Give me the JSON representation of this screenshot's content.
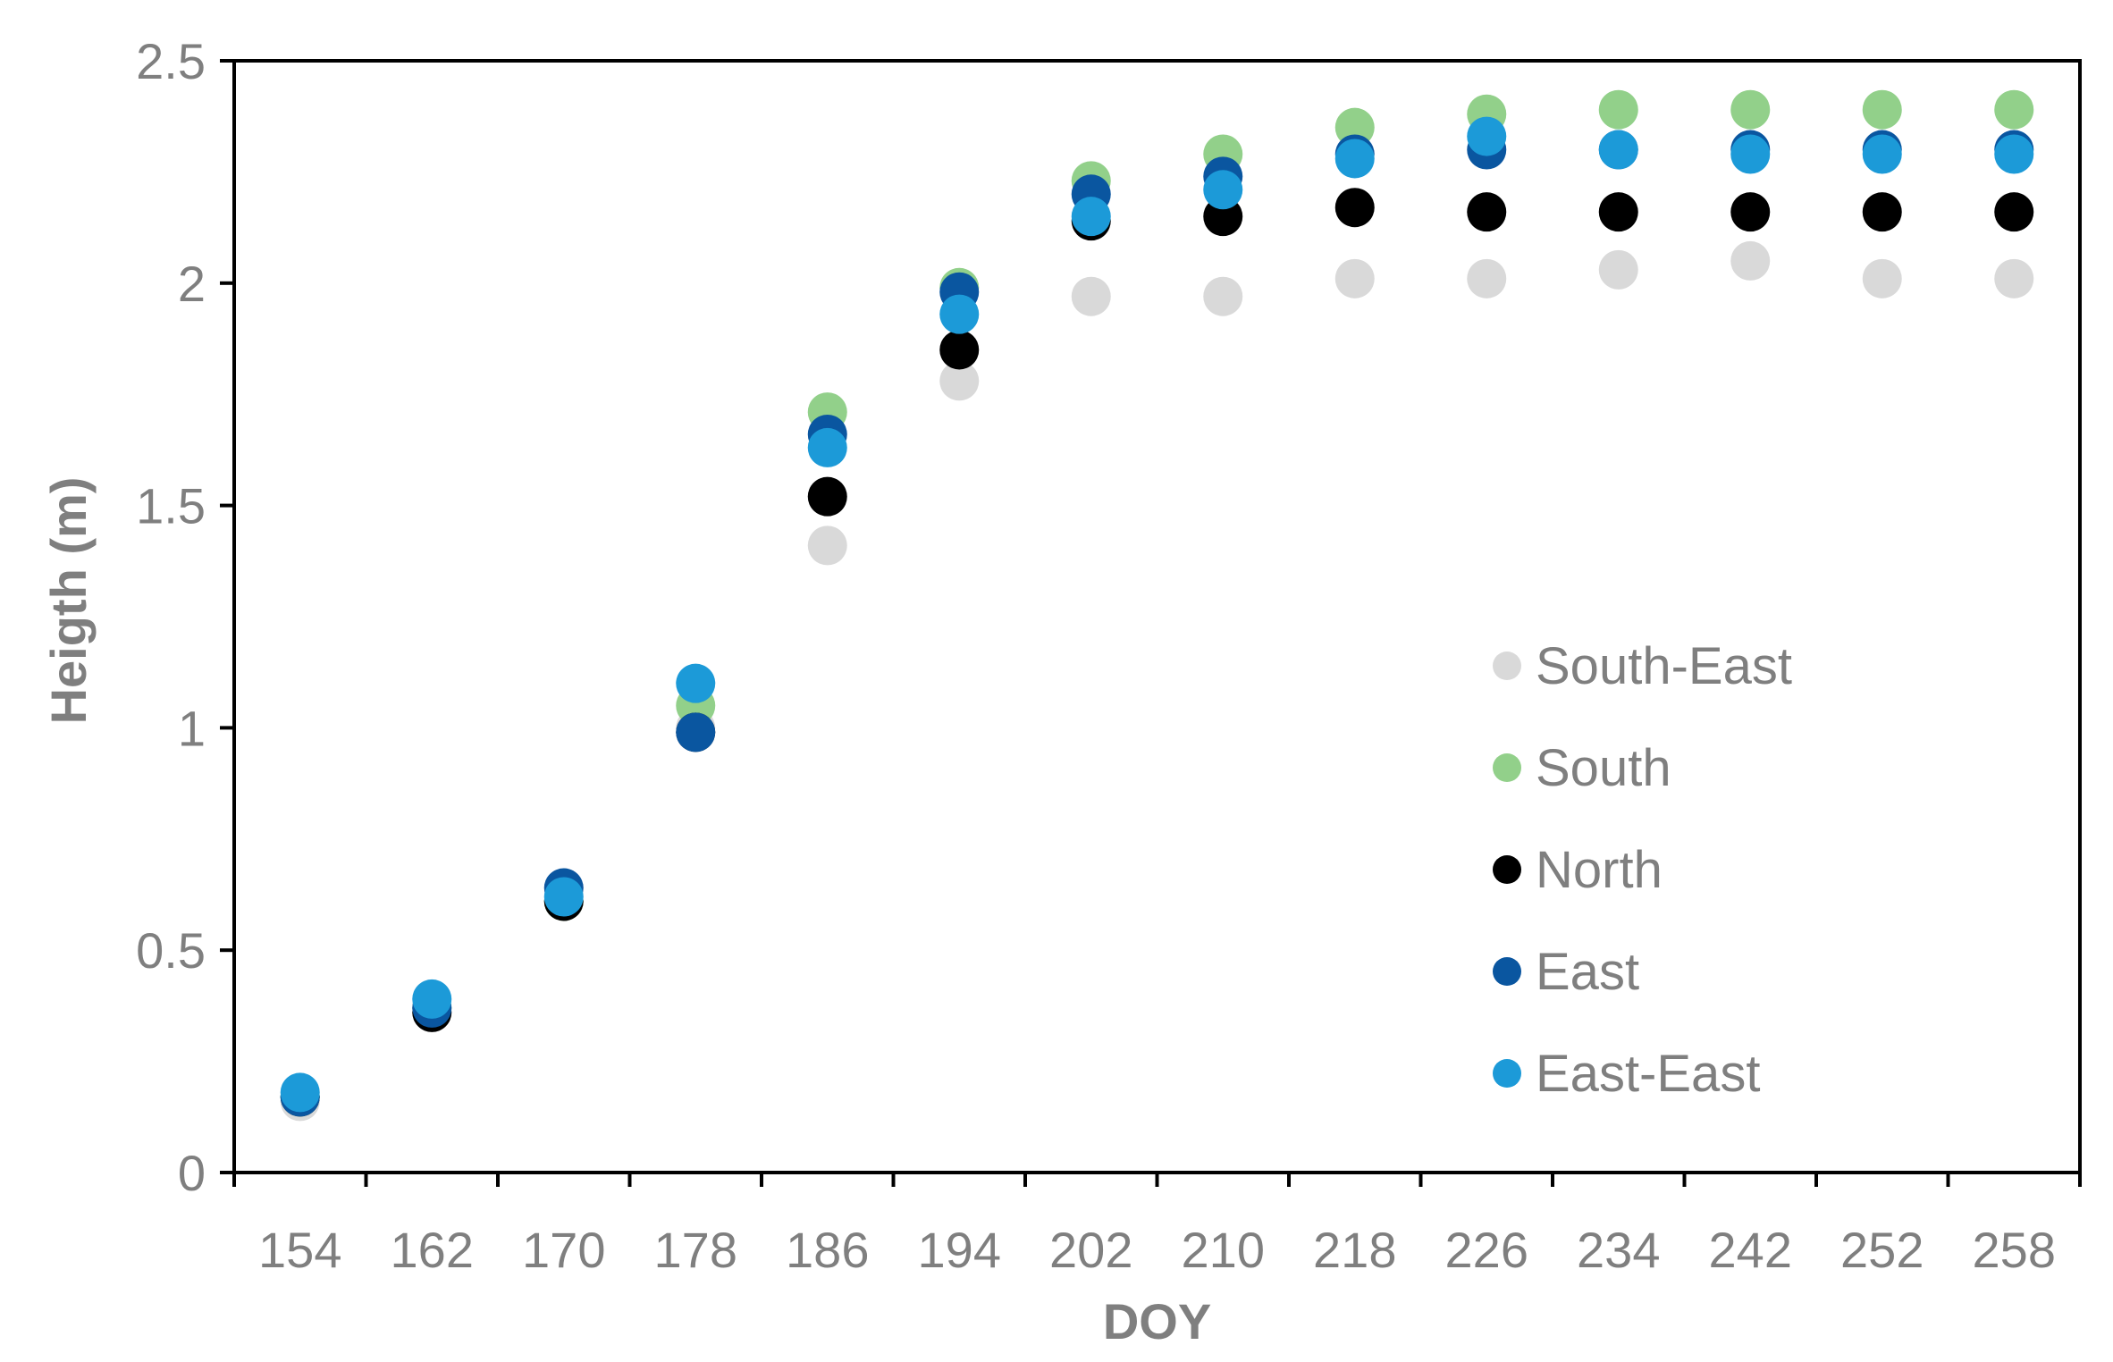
{
  "chart_data": {
    "type": "scatter",
    "title": "",
    "xlabel": "DOY",
    "ylabel": "Heigth (m)",
    "categories": [
      "154",
      "162",
      "170",
      "178",
      "186",
      "194",
      "202",
      "210",
      "218",
      "226",
      "234",
      "242",
      "252",
      "258"
    ],
    "yticks": [
      "0",
      "0.5",
      "1",
      "1.5",
      "2",
      "2.5"
    ],
    "ylim": [
      0,
      2.5
    ],
    "grid": false,
    "legend_position": "right",
    "series": [
      {
        "name": "South-East",
        "color": "#d9d9d9",
        "values": [
          0.16,
          0.37,
          0.61,
          1.0,
          1.41,
          1.78,
          1.97,
          1.97,
          2.01,
          2.01,
          2.03,
          2.05,
          2.01,
          2.01
        ]
      },
      {
        "name": "South",
        "color": "#92d08a",
        "values": [
          0.17,
          0.37,
          0.61,
          1.05,
          1.71,
          1.99,
          2.23,
          2.29,
          2.35,
          2.38,
          2.39,
          2.39,
          2.39,
          2.39
        ]
      },
      {
        "name": "North",
        "color": "#000000",
        "values": [
          0.17,
          0.36,
          0.61,
          0.99,
          1.52,
          1.85,
          2.14,
          2.15,
          2.17,
          2.16,
          2.16,
          2.16,
          2.16,
          2.16
        ]
      },
      {
        "name": "East",
        "color": "#0a56a0",
        "values": [
          0.17,
          0.37,
          0.64,
          0.99,
          1.66,
          1.98,
          2.2,
          2.24,
          2.29,
          2.3,
          2.3,
          2.3,
          2.3,
          2.3
        ]
      },
      {
        "name": "East-East",
        "color": "#1c9ad8",
        "values": [
          0.18,
          0.39,
          0.62,
          1.1,
          1.63,
          1.93,
          2.15,
          2.21,
          2.28,
          2.33,
          2.3,
          2.29,
          2.29,
          2.29
        ]
      }
    ]
  }
}
